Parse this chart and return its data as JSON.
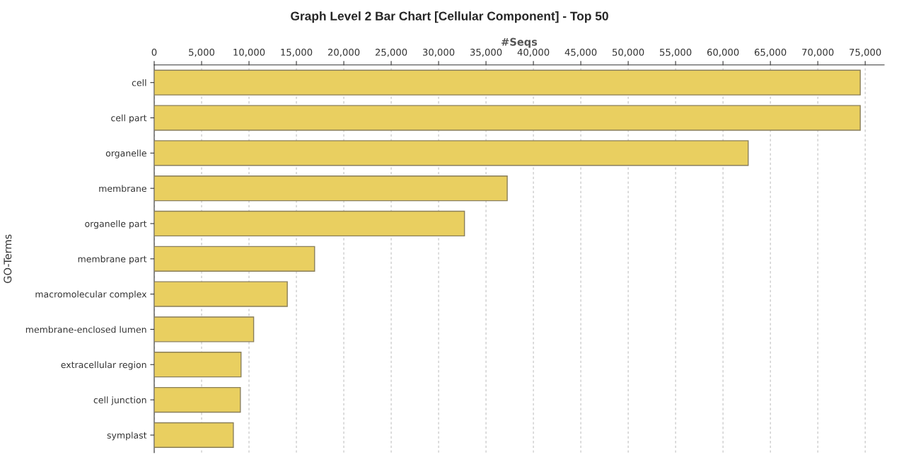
{
  "chart_data": {
    "type": "bar",
    "orientation": "horizontal",
    "title": "Graph Level 2 Bar Chart [Cellular Component] - Top 50",
    "xlabel": "#Seqs",
    "ylabel": "GO-Terms",
    "categories": [
      "cell",
      "cell part",
      "organelle",
      "membrane",
      "organelle part",
      "membrane part",
      "macromolecular complex",
      "membrane-enclosed lumen",
      "extracellular region",
      "cell junction",
      "symplast"
    ],
    "values": [
      74480,
      74480,
      62660,
      37240,
      32730,
      16920,
      14040,
      10490,
      9160,
      9090,
      8350
    ],
    "color": "#e9cf60",
    "xlim": [
      0,
      77000
    ],
    "xticks": [
      {
        "value": 0,
        "label": "0"
      },
      {
        "value": 5000,
        "label": "5,000"
      },
      {
        "value": 10000,
        "label": "10,000"
      },
      {
        "value": 15000,
        "label": "15,000"
      },
      {
        "value": 20000,
        "label": "20,000"
      },
      {
        "value": 25000,
        "label": "25,000"
      },
      {
        "value": 30000,
        "label": "30,000"
      },
      {
        "value": 35000,
        "label": "35,000"
      },
      {
        "value": 40000,
        "label": "40,000"
      },
      {
        "value": 45000,
        "label": "45,000"
      },
      {
        "value": 50000,
        "label": "50,000"
      },
      {
        "value": 55000,
        "label": "55,000"
      },
      {
        "value": 60000,
        "label": "60,000"
      },
      {
        "value": 65000,
        "label": "65,000"
      },
      {
        "value": 70000,
        "label": "70,000"
      },
      {
        "value": 75000,
        "label": "75,000"
      }
    ],
    "grid": "x",
    "legend": false
  }
}
